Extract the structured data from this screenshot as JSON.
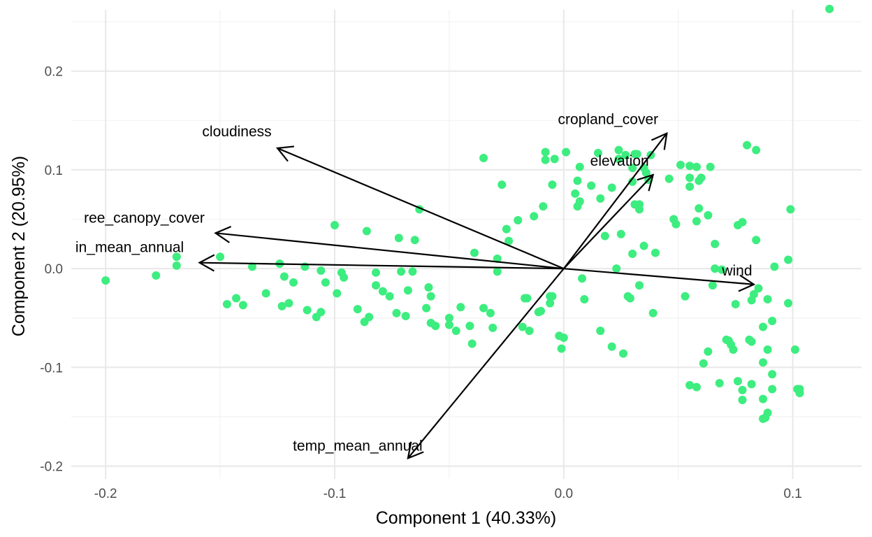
{
  "chart_data": {
    "type": "scatter",
    "subtype": "pca-biplot",
    "title": "",
    "xlabel": "Component 1 (40.33%)",
    "ylabel": "Component 2 (20.95%)",
    "xlim": [
      -0.215,
      0.13
    ],
    "ylim": [
      -0.213,
      0.272
    ],
    "x_ticks": [
      -0.2,
      -0.1,
      0.0,
      0.1
    ],
    "x_tick_labels": [
      "-0.2",
      "-0.1",
      "0.0",
      "0.1"
    ],
    "y_ticks": [
      -0.2,
      -0.1,
      0.0,
      0.1,
      0.2
    ],
    "y_tick_labels": [
      "-0.2",
      "-0.1",
      "0.0",
      "0.1",
      "0.2"
    ],
    "grid": true,
    "legend": "none",
    "point_color": "#3DED7F",
    "arrow_color": "#000000",
    "points": [
      [
        0.116,
        0.263
      ],
      [
        -0.2,
        -0.012
      ],
      [
        -0.178,
        -0.007
      ],
      [
        -0.169,
        0.012
      ],
      [
        -0.169,
        0.003
      ],
      [
        -0.15,
        0.012
      ],
      [
        -0.147,
        -0.036
      ],
      [
        -0.143,
        -0.03
      ],
      [
        -0.14,
        -0.037
      ],
      [
        -0.136,
        0.002
      ],
      [
        -0.13,
        -0.025
      ],
      [
        -0.124,
        0.005
      ],
      [
        -0.123,
        -0.038
      ],
      [
        -0.122,
        -0.008
      ],
      [
        -0.12,
        -0.035
      ],
      [
        -0.118,
        -0.014
      ],
      [
        -0.113,
        0.002
      ],
      [
        -0.112,
        -0.042
      ],
      [
        -0.108,
        -0.049
      ],
      [
        -0.106,
        -0.002
      ],
      [
        -0.106,
        -0.044
      ],
      [
        -0.104,
        -0.014
      ],
      [
        -0.1,
        0.044
      ],
      [
        -0.099,
        -0.025
      ],
      [
        -0.097,
        -0.004
      ],
      [
        -0.096,
        -0.009
      ],
      [
        -0.09,
        -0.041
      ],
      [
        -0.086,
        0.038
      ],
      [
        -0.085,
        -0.049
      ],
      [
        -0.087,
        -0.054
      ],
      [
        -0.082,
        -0.004
      ],
      [
        -0.082,
        -0.017
      ],
      [
        -0.079,
        -0.023
      ],
      [
        -0.076,
        -0.028
      ],
      [
        -0.073,
        -0.045
      ],
      [
        -0.072,
        0.031
      ],
      [
        -0.071,
        -0.003
      ],
      [
        -0.069,
        -0.048
      ],
      [
        -0.068,
        -0.022
      ],
      [
        -0.066,
        -0.003
      ],
      [
        -0.065,
        0.029
      ],
      [
        -0.063,
        0.06
      ],
      [
        -0.06,
        -0.04
      ],
      [
        -0.059,
        -0.019
      ],
      [
        -0.058,
        -0.028
      ],
      [
        -0.058,
        -0.055
      ],
      [
        -0.056,
        -0.058
      ],
      [
        -0.05,
        -0.05
      ],
      [
        -0.05,
        -0.057
      ],
      [
        -0.047,
        -0.063
      ],
      [
        -0.045,
        -0.039
      ],
      [
        -0.041,
        -0.058
      ],
      [
        -0.04,
        -0.076
      ],
      [
        -0.039,
        0.016
      ],
      [
        -0.035,
        0.112
      ],
      [
        -0.035,
        -0.04
      ],
      [
        -0.032,
        -0.045
      ],
      [
        -0.031,
        -0.06
      ],
      [
        -0.029,
        0.01
      ],
      [
        -0.029,
        -0.003
      ],
      [
        -0.027,
        0.085
      ],
      [
        -0.025,
        0.04
      ],
      [
        -0.024,
        0.028
      ],
      [
        -0.02,
        0.049
      ],
      [
        -0.018,
        -0.059
      ],
      [
        -0.017,
        -0.03
      ],
      [
        -0.016,
        -0.03
      ],
      [
        -0.015,
        -0.063
      ],
      [
        -0.013,
        0.053
      ],
      [
        -0.011,
        -0.044
      ],
      [
        -0.01,
        -0.043
      ],
      [
        -0.009,
        0.063
      ],
      [
        -0.008,
        0.118
      ],
      [
        -0.008,
        0.11
      ],
      [
        -0.006,
        -0.035
      ],
      [
        -0.005,
        0.085
      ],
      [
        -0.006,
        -0.028
      ],
      [
        -0.005,
        -0.028
      ],
      [
        -0.004,
        0.111
      ],
      [
        -0.002,
        -0.068
      ],
      [
        -0.001,
        -0.081
      ],
      [
        0.0,
        -0.07
      ],
      [
        0.001,
        0.118
      ],
      [
        0.005,
        0.076
      ],
      [
        0.006,
        0.063
      ],
      [
        0.006,
        0.089
      ],
      [
        0.007,
        0.068
      ],
      [
        0.007,
        0.103
      ],
      [
        0.008,
        -0.01
      ],
      [
        0.009,
        -0.031
      ],
      [
        0.012,
        0.084
      ],
      [
        0.015,
        0.117
      ],
      [
        0.016,
        0.071
      ],
      [
        0.016,
        -0.063
      ],
      [
        0.018,
        0.033
      ],
      [
        0.021,
        0.082
      ],
      [
        0.021,
        -0.079
      ],
      [
        0.023,
        0.0
      ],
      [
        0.024,
        0.12
      ],
      [
        0.024,
        0.111
      ],
      [
        0.025,
        0.035
      ],
      [
        0.026,
        -0.086
      ],
      [
        0.027,
        0.115
      ],
      [
        0.028,
        -0.028
      ],
      [
        0.029,
        -0.03
      ],
      [
        0.03,
        0.102
      ],
      [
        0.03,
        0.088
      ],
      [
        0.03,
        0.015
      ],
      [
        0.031,
        0.065
      ],
      [
        0.031,
        0.116
      ],
      [
        0.032,
        0.116
      ],
      [
        0.033,
        0.06
      ],
      [
        0.033,
        0.065
      ],
      [
        0.033,
        -0.017
      ],
      [
        0.035,
        0.102
      ],
      [
        0.035,
        0.023
      ],
      [
        0.036,
        0.097
      ],
      [
        0.037,
        0.09
      ],
      [
        0.038,
        0.115
      ],
      [
        0.039,
        -0.045
      ],
      [
        0.04,
        0.016
      ],
      [
        0.046,
        0.091
      ],
      [
        0.048,
        0.05
      ],
      [
        0.049,
        0.045
      ],
      [
        0.051,
        0.105
      ],
      [
        0.053,
        -0.028
      ],
      [
        0.055,
        0.104
      ],
      [
        0.055,
        0.092
      ],
      [
        0.055,
        0.083
      ],
      [
        0.055,
        -0.118
      ],
      [
        0.058,
        0.048
      ],
      [
        0.058,
        -0.12
      ],
      [
        0.058,
        0.103
      ],
      [
        0.059,
        0.089
      ],
      [
        0.059,
        0.061
      ],
      [
        0.06,
        0.092
      ],
      [
        0.061,
        -0.096
      ],
      [
        0.063,
        -0.084
      ],
      [
        0.063,
        0.054
      ],
      [
        0.064,
        0.103
      ],
      [
        0.066,
        0.025
      ],
      [
        0.065,
        -0.017
      ],
      [
        0.066,
        0.0
      ],
      [
        0.068,
        -0.116
      ],
      [
        0.069,
        -0.001
      ],
      [
        0.071,
        -0.072
      ],
      [
        0.072,
        -0.073
      ],
      [
        0.073,
        -0.077
      ],
      [
        0.074,
        -0.082
      ],
      [
        0.075,
        -0.036
      ],
      [
        0.076,
        0.044
      ],
      [
        0.076,
        -0.114
      ],
      [
        0.078,
        0.047
      ],
      [
        0.078,
        -0.123
      ],
      [
        0.078,
        -0.133
      ],
      [
        0.08,
        0.125
      ],
      [
        0.081,
        -0.072
      ],
      [
        0.082,
        -0.032
      ],
      [
        0.082,
        -0.074
      ],
      [
        0.082,
        -0.117
      ],
      [
        0.083,
        -0.026
      ],
      [
        0.084,
        0.12
      ],
      [
        0.084,
        0.029
      ],
      [
        0.085,
        -0.02
      ],
      [
        0.087,
        -0.059
      ],
      [
        0.087,
        -0.095
      ],
      [
        0.087,
        -0.132
      ],
      [
        0.087,
        -0.152
      ],
      [
        0.088,
        -0.151
      ],
      [
        0.089,
        -0.082
      ],
      [
        0.089,
        -0.031
      ],
      [
        0.089,
        -0.146
      ],
      [
        0.091,
        -0.107
      ],
      [
        0.091,
        -0.053
      ],
      [
        0.091,
        -0.122
      ],
      [
        0.092,
        0.002
      ],
      [
        0.098,
        0.009
      ],
      [
        0.098,
        -0.035
      ],
      [
        0.099,
        0.06
      ],
      [
        0.101,
        -0.082
      ],
      [
        0.102,
        -0.122
      ],
      [
        0.103,
        -0.122
      ],
      [
        0.103,
        -0.126
      ]
    ],
    "loadings": [
      {
        "label": "cloudiness",
        "x": -0.125,
        "y": 0.122
      },
      {
        "label": "ree_canopy_cover",
        "x": -0.152,
        "y": 0.036
      },
      {
        "label": "in_mean_annual",
        "x": -0.159,
        "y": 0.006
      },
      {
        "label": "temp_mean_annual",
        "x": -0.068,
        "y": -0.192
      },
      {
        "label": "cropland_cover",
        "x": 0.045,
        "y": 0.137
      },
      {
        "label": "elevation",
        "x": 0.039,
        "y": 0.095
      },
      {
        "label": "wind",
        "x": 0.083,
        "y": -0.016
      }
    ]
  }
}
